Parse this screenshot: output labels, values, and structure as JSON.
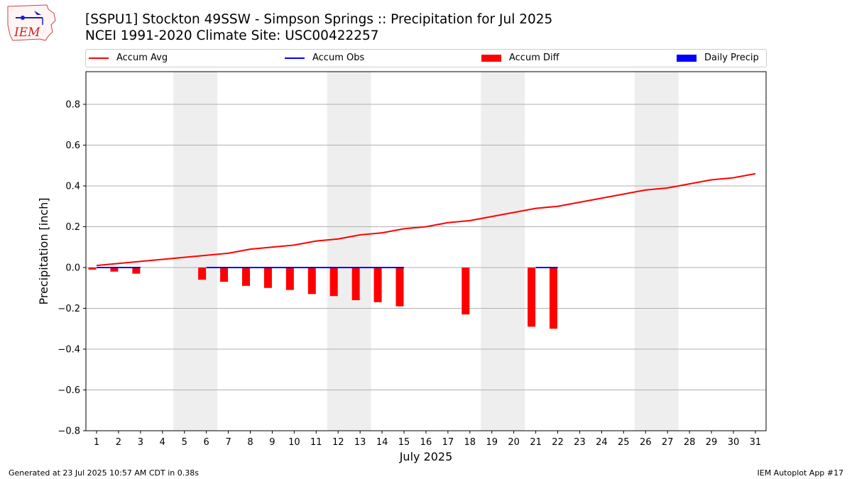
{
  "page": {
    "title_line1": "[SSPU1] Stockton 49SSW - Simpson Springs :: Precipitation for Jul 2025",
    "title_line2": "NCEI 1991-2020 Climate Site: USC00422257",
    "footer_left": "Generated at 23 Jul 2025 10:57 AM CDT in 0.38s",
    "footer_right": "IEM Autoplot App #17",
    "logo_text": "IEM"
  },
  "legend": [
    {
      "label": "Accum Avg",
      "kind": "line",
      "color": "#ff0000"
    },
    {
      "label": "Accum Obs",
      "kind": "line",
      "color": "#0000ff"
    },
    {
      "label": "Accum Diff",
      "kind": "patch",
      "color": "#ff0000"
    },
    {
      "label": "Daily Precip",
      "kind": "patch",
      "color": "#0000ff"
    }
  ],
  "chart_data": {
    "type": "bar",
    "xlabel": "July 2025",
    "ylabel": "Precipitation [inch]",
    "ylim": [
      -0.8,
      0.96
    ],
    "yticks": [
      -0.8,
      -0.6,
      -0.4,
      -0.2,
      0.0,
      0.2,
      0.4,
      0.6,
      0.8
    ],
    "ytick_labels": [
      "−0.8",
      "−0.6",
      "−0.4",
      "−0.2",
      "0.0",
      "0.2",
      "0.4",
      "0.6",
      "0.8"
    ],
    "x": [
      1,
      2,
      3,
      4,
      5,
      6,
      7,
      8,
      9,
      10,
      11,
      12,
      13,
      14,
      15,
      16,
      17,
      18,
      19,
      20,
      21,
      22,
      23,
      24,
      25,
      26,
      27,
      28,
      29,
      30,
      31
    ],
    "weekend_days": [
      5,
      6,
      12,
      13,
      19,
      20,
      26,
      27
    ],
    "grid": "y",
    "series": [
      {
        "name": "Accum Avg",
        "type": "line",
        "color": "#ff0000",
        "x": [
          1,
          2,
          3,
          4,
          5,
          6,
          7,
          8,
          9,
          10,
          11,
          12,
          13,
          14,
          15,
          16,
          17,
          18,
          19,
          20,
          21,
          22,
          23,
          24,
          25,
          26,
          27,
          28,
          29,
          30,
          31
        ],
        "values": [
          0.01,
          0.02,
          0.03,
          0.04,
          0.05,
          0.06,
          0.07,
          0.09,
          0.1,
          0.11,
          0.13,
          0.14,
          0.16,
          0.17,
          0.19,
          0.2,
          0.22,
          0.23,
          0.25,
          0.27,
          0.29,
          0.3,
          0.32,
          0.34,
          0.36,
          0.38,
          0.39,
          0.41,
          0.43,
          0.44,
          0.46
        ]
      },
      {
        "name": "Accum Obs",
        "type": "line",
        "color": "#0000ff",
        "segments": [
          {
            "x": [
              1,
              2,
              3
            ],
            "values": [
              0,
              0,
              0
            ]
          },
          {
            "x": [
              6,
              7,
              8,
              9,
              10,
              11,
              12,
              13,
              14,
              15
            ],
            "values": [
              0,
              0,
              0,
              0,
              0,
              0,
              0,
              0,
              0,
              0
            ]
          },
          {
            "x": [
              21,
              22
            ],
            "values": [
              0,
              0
            ]
          }
        ]
      },
      {
        "name": "Accum Diff",
        "type": "bar",
        "color": "#ff0000",
        "x": [
          1,
          2,
          3,
          6,
          7,
          8,
          9,
          10,
          11,
          12,
          13,
          14,
          15,
          18,
          21,
          22
        ],
        "values": [
          -0.01,
          -0.02,
          -0.03,
          -0.06,
          -0.07,
          -0.09,
          -0.1,
          -0.11,
          -0.13,
          -0.14,
          -0.16,
          -0.17,
          -0.19,
          -0.23,
          -0.29,
          -0.3
        ]
      },
      {
        "name": "Daily Precip",
        "type": "bar",
        "color": "#0000ff",
        "x": [],
        "values": []
      }
    ]
  }
}
